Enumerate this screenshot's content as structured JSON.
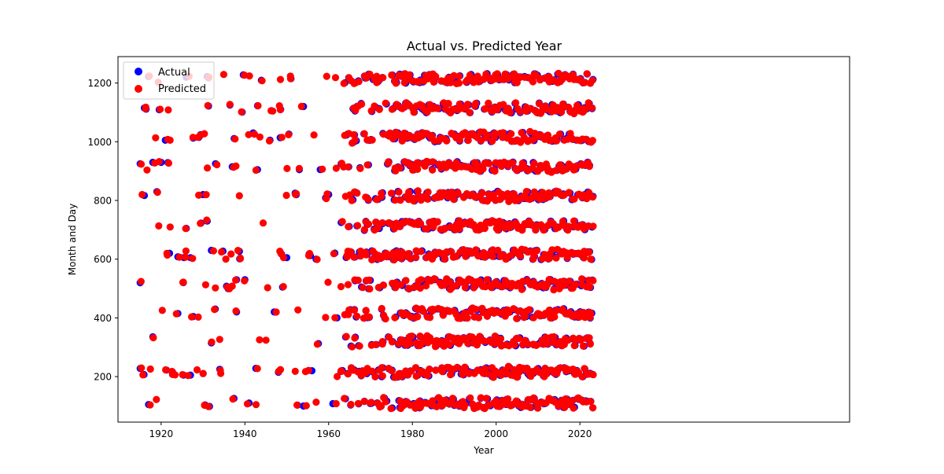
{
  "chart_data": {
    "type": "scatter",
    "title": "Actual vs. Predicted Year",
    "xlabel": "Year",
    "ylabel": "Month and Day",
    "xlim": [
      1909.7,
      1084.4
    ],
    "xlim_note": "",
    "ylim": [
      45,
      1290
    ],
    "x_ticks": [
      1920,
      1940,
      1960,
      1980,
      2000,
      2020
    ],
    "y_ticks": [
      200,
      400,
      600,
      800,
      1000,
      1200
    ],
    "grid": false,
    "legend": {
      "placement": "upper-left",
      "entries": [
        "Actual",
        "Predicted"
      ]
    },
    "series": [
      {
        "name": "Actual",
        "color": "#0000ff",
        "points": []
      },
      {
        "name": "Predicted",
        "color": "#ff0000",
        "points": []
      }
    ],
    "sample_points": {
      "Actual": [
        [
          1915,
          925
        ],
        [
          1915,
          520
        ],
        [
          1915,
          228
        ],
        [
          1916,
          817
        ],
        [
          1916,
          1115
        ],
        [
          1917,
          105
        ],
        [
          1918,
          930
        ],
        [
          1919,
          830
        ],
        [
          1920,
          930
        ],
        [
          1921,
          1005
        ],
        [
          1922,
          620
        ],
        [
          1924,
          608
        ],
        [
          1924,
          415
        ],
        [
          1926,
          1220
        ],
        [
          1926,
          705
        ],
        [
          1927,
          605
        ],
        [
          1927,
          205
        ],
        [
          1929,
          1015
        ],
        [
          1930,
          820
        ],
        [
          1931,
          1222
        ],
        [
          1931,
          730
        ],
        [
          1932,
          630
        ],
        [
          1932,
          315
        ],
        [
          1933,
          925
        ],
        [
          1934,
          225
        ],
        [
          1936,
          500
        ],
        [
          1937,
          915
        ],
        [
          1938,
          530
        ],
        [
          1938,
          420
        ],
        [
          1940,
          530
        ],
        [
          1941,
          110
        ],
        [
          1942,
          1030
        ],
        [
          1943,
          905
        ],
        [
          1946,
          1005
        ],
        [
          1947,
          420
        ],
        [
          1948,
          215
        ],
        [
          1949,
          505
        ],
        [
          1950,
          605
        ],
        [
          1951,
          1215
        ],
        [
          1952,
          825
        ],
        [
          1953,
          905
        ],
        [
          1954,
          1120
        ],
        [
          1954,
          100
        ],
        [
          1956,
          220
        ],
        [
          1957,
          600
        ],
        [
          1958,
          905
        ],
        [
          1960,
          820
        ],
        [
          1961,
          108
        ],
        [
          1962,
          400
        ],
        [
          1963,
          725
        ],
        [
          1963,
          925
        ]
      ]
    }
  }
}
